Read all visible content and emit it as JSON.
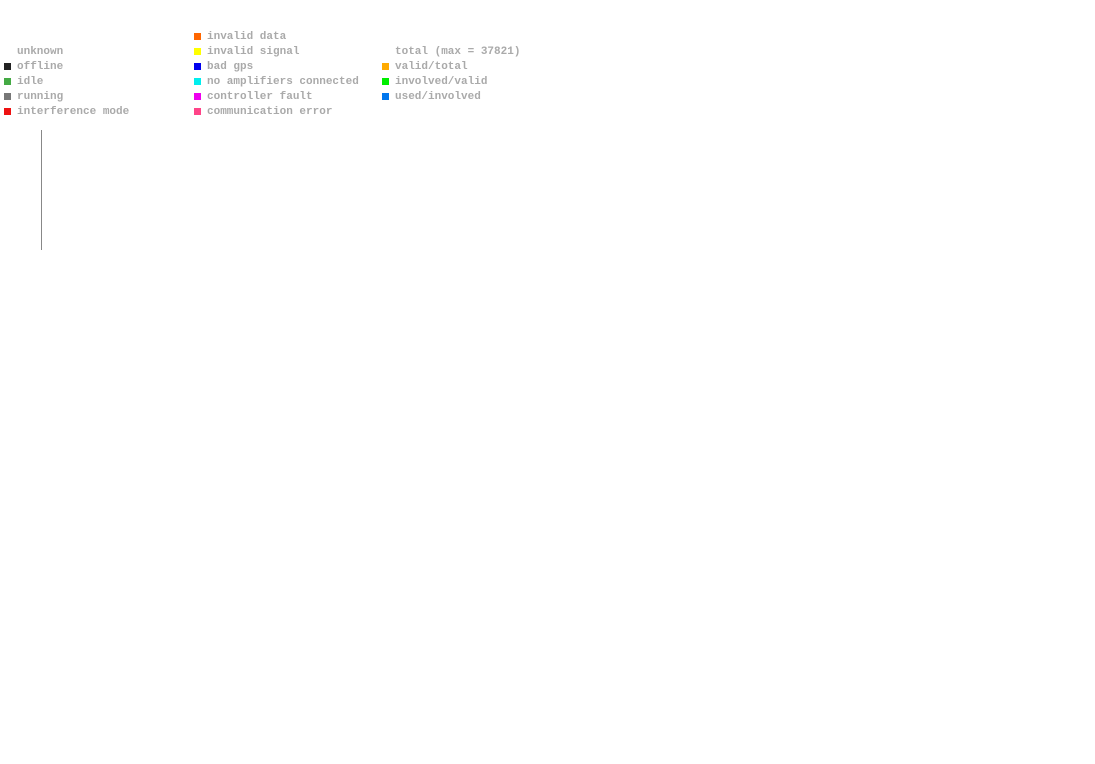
{
  "legend": {
    "columns": [
      {
        "items": [
          {
            "label": "unknown"
          },
          {
            "label": "offline",
            "color": "#222222"
          },
          {
            "label": "idle",
            "color": "#44aa44"
          },
          {
            "label": "running",
            "color": "#777777"
          },
          {
            "label": "interference mode",
            "color": "#ee1111"
          }
        ]
      },
      {
        "items": [
          {
            "label": "invalid data",
            "color": "#ff6600"
          },
          {
            "label": "invalid signal",
            "color": "#ffff00"
          },
          {
            "label": "bad gps",
            "color": "#0000ee"
          },
          {
            "label": "no amplifiers connected",
            "color": "#00eeee"
          },
          {
            "label": "controller fault",
            "color": "#ee00ee"
          },
          {
            "label": "communication error",
            "color": "#ff4488"
          }
        ]
      },
      {
        "items": [
          {
            "label": "total (max = 37821)"
          },
          {
            "label": "valid/total",
            "color": "#ffaa00"
          },
          {
            "label": "involved/valid",
            "color": "#00ee00"
          },
          {
            "label": "used/involved",
            "color": "#0077ee"
          }
        ]
      }
    ]
  }
}
